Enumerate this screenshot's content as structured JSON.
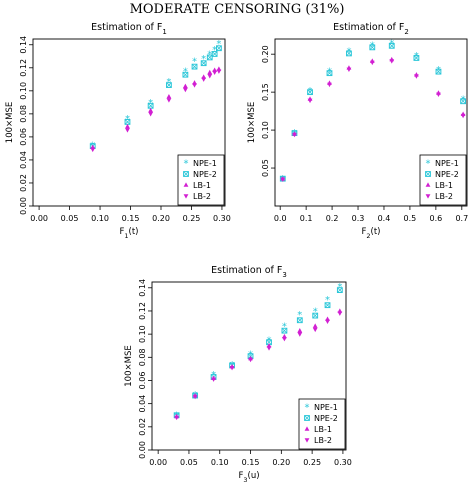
{
  "page": {
    "title": "MODERATE CENSORING (31%)"
  },
  "legend": {
    "entries": [
      "NPE-1",
      "NPE-2",
      "LB-1",
      "LB-2"
    ],
    "placement": "bottom-right"
  },
  "series_style": {
    "colors": {
      "npe": "#29c6d8",
      "lb": "#d21fd2"
    },
    "markers": [
      "star",
      "square-x",
      "triangle",
      "triangle-down"
    ]
  },
  "chart_data": [
    {
      "type": "scatter",
      "title_text": "Estimation of F",
      "title_sub": "1",
      "xlabel_text": "F",
      "xlabel_sub": "1",
      "xlabel_suffix": "(t)",
      "ylabel": "100×MSE",
      "xlim": [
        -0.01,
        0.305
      ],
      "ylim": [
        0.0,
        0.145
      ],
      "xticks": [
        "0.00",
        "0.05",
        "0.10",
        "0.15",
        "0.20",
        "0.25",
        "0.30"
      ],
      "xtick_values": [
        0.0,
        0.05,
        0.1,
        0.15,
        0.2,
        0.25,
        0.3
      ],
      "yticks": [
        "0.00",
        "0.02",
        "0.04",
        "0.06",
        "0.08",
        "0.10",
        "0.12",
        "0.14"
      ],
      "ytick_values": [
        0.0,
        0.02,
        0.04,
        0.06,
        0.08,
        0.1,
        0.12,
        0.14
      ],
      "x": [
        0.088,
        0.145,
        0.183,
        0.213,
        0.24,
        0.255,
        0.27,
        0.28,
        0.288,
        0.295
      ],
      "series": [
        {
          "name": "NPE-1",
          "values": [
            0.053,
            0.076,
            0.09,
            0.108,
            0.117,
            0.126,
            0.128,
            0.132,
            0.136,
            0.141
          ]
        },
        {
          "name": "NPE-2",
          "values": [
            0.052,
            0.073,
            0.087,
            0.105,
            0.114,
            0.121,
            0.124,
            0.129,
            0.132,
            0.137
          ]
        },
        {
          "name": "LB-1",
          "values": [
            0.051,
            0.069,
            0.083,
            0.095,
            0.104,
            0.107,
            0.112,
            0.116,
            0.118,
            0.119
          ]
        },
        {
          "name": "LB-2",
          "values": [
            0.049,
            0.066,
            0.08,
            0.092,
            0.101,
            0.105,
            0.11,
            0.113,
            0.116,
            0.117
          ]
        }
      ]
    },
    {
      "type": "scatter",
      "title_text": "Estimation of F",
      "title_sub": "2",
      "xlabel_text": "F",
      "xlabel_sub": "2",
      "xlabel_suffix": "(t)",
      "ylabel": "100×MSE",
      "xlim": [
        -0.02,
        0.72
      ],
      "ylim": [
        0.0,
        0.22
      ],
      "xticks": [
        "0.0",
        "0.1",
        "0.2",
        "0.3",
        "0.4",
        "0.5",
        "0.6",
        "0.7"
      ],
      "xtick_values": [
        0.0,
        0.1,
        0.2,
        0.3,
        0.4,
        0.5,
        0.6,
        0.7
      ],
      "yticks": [
        "0.05",
        "0.10",
        "0.15",
        "0.20"
      ],
      "ytick_values": [
        0.05,
        0.1,
        0.15,
        0.2
      ],
      "x": [
        0.01,
        0.055,
        0.115,
        0.19,
        0.265,
        0.355,
        0.43,
        0.525,
        0.61,
        0.705
      ],
      "series": [
        {
          "name": "NPE-1",
          "values": [
            0.036,
            0.097,
            0.152,
            0.178,
            0.204,
            0.212,
            0.215,
            0.198,
            0.18,
            0.141
          ]
        },
        {
          "name": "NPE-2",
          "values": [
            0.036,
            0.096,
            0.15,
            0.175,
            0.201,
            0.209,
            0.211,
            0.195,
            0.177,
            0.138
          ]
        },
        {
          "name": "LB-1",
          "values": [
            0.036,
            0.095,
            0.141,
            0.162,
            0.182,
            0.191,
            0.193,
            0.173,
            0.149,
            0.121
          ]
        },
        {
          "name": "LB-2",
          "values": [
            0.035,
            0.094,
            0.139,
            0.16,
            0.18,
            0.189,
            0.191,
            0.171,
            0.147,
            0.119
          ]
        }
      ]
    },
    {
      "type": "scatter",
      "title_text": "Estimation of F",
      "title_sub": "3",
      "xlabel_text": "F",
      "xlabel_sub": "3",
      "xlabel_suffix": "(u)",
      "ylabel": "100×MSE",
      "xlim": [
        -0.01,
        0.305
      ],
      "ylim": [
        0.0,
        0.145
      ],
      "xticks": [
        "0.00",
        "0.05",
        "0.10",
        "0.15",
        "0.20",
        "0.25",
        "0.30"
      ],
      "xtick_values": [
        0.0,
        0.05,
        0.1,
        0.15,
        0.2,
        0.25,
        0.3
      ],
      "yticks": [
        "0.00",
        "0.02",
        "0.04",
        "0.06",
        "0.08",
        "0.10",
        "0.12",
        "0.14"
      ],
      "ytick_values": [
        0.0,
        0.02,
        0.04,
        0.06,
        0.08,
        0.1,
        0.12,
        0.14
      ],
      "x": [
        0.03,
        0.06,
        0.09,
        0.12,
        0.15,
        0.18,
        0.205,
        0.23,
        0.255,
        0.275,
        0.295
      ],
      "series": [
        {
          "name": "NPE-1",
          "values": [
            0.03,
            0.048,
            0.065,
            0.074,
            0.083,
            0.095,
            0.107,
            0.117,
            0.12,
            0.13,
            0.141
          ]
        },
        {
          "name": "NPE-2",
          "values": [
            0.03,
            0.047,
            0.063,
            0.073,
            0.081,
            0.093,
            0.103,
            0.112,
            0.116,
            0.125,
            0.138
          ]
        },
        {
          "name": "LB-1",
          "values": [
            0.029,
            0.047,
            0.062,
            0.072,
            0.079,
            0.09,
            0.098,
            0.103,
            0.107,
            0.113,
            0.12
          ]
        },
        {
          "name": "LB-2",
          "values": [
            0.028,
            0.046,
            0.061,
            0.071,
            0.078,
            0.088,
            0.096,
            0.1,
            0.104,
            0.111,
            0.118
          ]
        }
      ]
    }
  ]
}
